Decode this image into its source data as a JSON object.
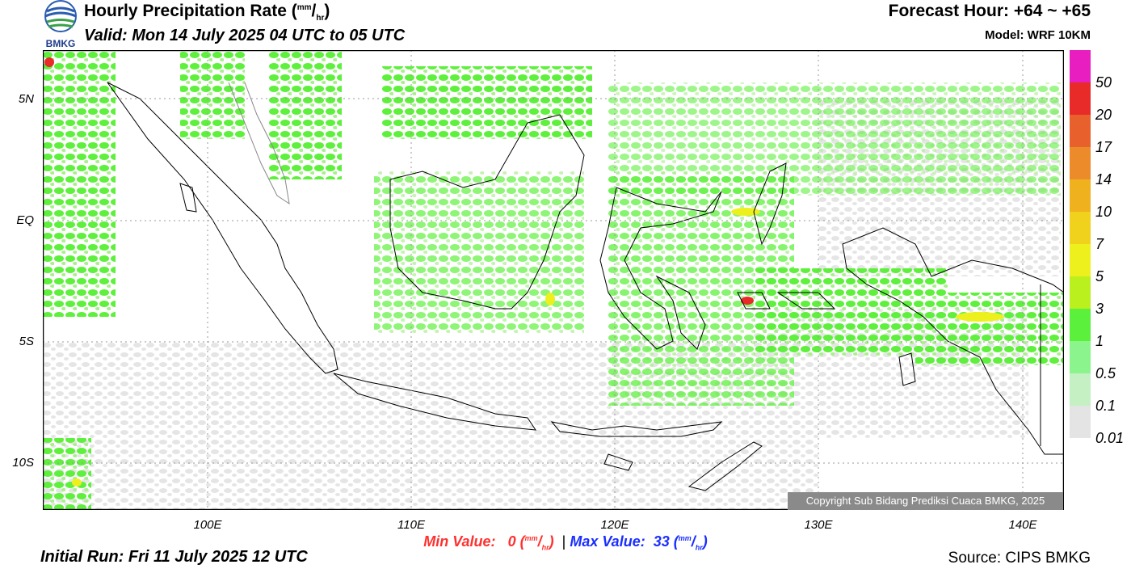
{
  "header": {
    "title": "Hourly Precipitation Rate (",
    "title_unit_top": "mm",
    "title_unit_sep": "/",
    "title_unit_bottom": "hr",
    "title_close": ")",
    "valid": "Valid: Mon 14 July 2025 04 UTC to 05 UTC",
    "forecast_hour": "Forecast Hour: +64 ~ +65",
    "model": "Model: WRF 10KM",
    "logo_text": "BMKG"
  },
  "map": {
    "lat_labels": [
      "5N",
      "EQ",
      "5S",
      "10S"
    ],
    "lon_labels": [
      "100E",
      "110E",
      "120E",
      "130E",
      "140E"
    ],
    "copyright": "Copyright Sub Bidang Prediksi Cuaca BMKG, 2025",
    "colors": {
      "land_outline": "#000000",
      "rain_light": "#e4e4e4",
      "rain_green": "#5ef03c"
    }
  },
  "legend": {
    "labels": [
      "50",
      "20",
      "17",
      "14",
      "10",
      "7",
      "5",
      "3",
      "1",
      "0.5",
      "0.1",
      "0.01"
    ],
    "colors": [
      "#e81ec0",
      "#e82a28",
      "#e8602c",
      "#ec8b2a",
      "#f0b11e",
      "#f0d21c",
      "#eef01e",
      "#b9f01e",
      "#5af03c",
      "#8cf48c",
      "#c4f0c4",
      "#e4e4e4"
    ]
  },
  "footer": {
    "min_label": "Min Value:",
    "min_value": "0",
    "max_label": "Max Value:",
    "max_value": "33",
    "unit_top": "mm",
    "unit_sep": "/",
    "unit_bottom": "hr",
    "separator": "|",
    "initial_run": "Initial Run: Fri 11 July 2025 12 UTC",
    "source": "Source: CIPS BMKG"
  }
}
